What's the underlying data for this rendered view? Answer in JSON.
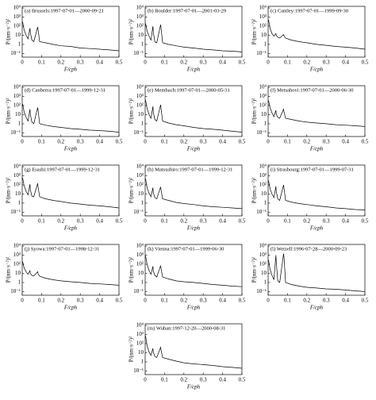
{
  "chart_data": [
    {
      "type": "line",
      "title": "(a) Brussels:1997-07-01—2000-09-21",
      "xlabel": "F/cph",
      "ylabel": "P/(nm·s⁻²)²",
      "log": true,
      "color": "#000000",
      "xlim": [
        0,
        0.5
      ],
      "xticks": [
        0,
        0.1,
        0.2,
        0.3,
        0.4,
        0.5
      ],
      "ylim": [
        0.04,
        15000
      ],
      "yticks": [
        {
          "value": 10000,
          "label": "10⁴"
        },
        {
          "value": 1000,
          "label": "10³"
        },
        {
          "value": 100,
          "label": "10²"
        },
        10,
        1,
        {
          "value": 0.1,
          "label": "10⁻¹"
        }
      ],
      "x": [
        0.002,
        0.01,
        0.02,
        0.03,
        0.04,
        0.042,
        0.05,
        0.06,
        0.08,
        0.083,
        0.09,
        0.12,
        0.16,
        0.2,
        0.25,
        0.3,
        0.35,
        0.4,
        0.45,
        0.5
      ],
      "values": [
        300,
        40,
        10,
        4,
        60,
        20,
        3,
        2,
        80,
        30,
        2,
        1.5,
        1,
        0.7,
        0.6,
        0.4,
        0.35,
        0.3,
        0.25,
        0.2
      ]
    },
    {
      "type": "line",
      "title": "(b) Boulder:1997-07-01—2001-03-29",
      "xlabel": "F/cph",
      "ylabel": "P/(nm·s⁻²)²",
      "log": true,
      "color": "#000000",
      "xlim": [
        0,
        0.5
      ],
      "xticks": [
        0,
        0.1,
        0.2,
        0.3,
        0.4,
        0.5
      ],
      "ylim": [
        0.04,
        15000
      ],
      "yticks": [
        {
          "value": 10000,
          "label": "10⁴"
        },
        {
          "value": 1000,
          "label": "10³"
        },
        {
          "value": 100,
          "label": "10²"
        },
        10,
        1,
        {
          "value": 0.1,
          "label": "10⁻¹"
        }
      ],
      "x": [
        0.002,
        0.01,
        0.02,
        0.03,
        0.04,
        0.042,
        0.05,
        0.06,
        0.08,
        0.083,
        0.09,
        0.12,
        0.16,
        0.2,
        0.25,
        0.3,
        0.35,
        0.4,
        0.45,
        0.5
      ],
      "values": [
        200,
        30,
        8,
        3,
        100,
        25,
        2,
        1.5,
        150,
        40,
        1.5,
        1,
        0.7,
        0.5,
        0.4,
        0.3,
        0.25,
        0.2,
        0.18,
        0.15
      ]
    },
    {
      "type": "line",
      "title": "(c) Cantley:1997-07-01—1999-09-30",
      "xlabel": "F/cph",
      "ylabel": "P/(nm·s⁻²)²",
      "log": true,
      "color": "#000000",
      "xlim": [
        0,
        0.5
      ],
      "xticks": [
        0,
        0.1,
        0.2,
        0.3,
        0.4,
        0.5
      ],
      "ylim": [
        0.04,
        15000
      ],
      "yticks": [
        {
          "value": 10000,
          "label": "10⁴"
        },
        {
          "value": 1000,
          "label": "10³"
        },
        {
          "value": 100,
          "label": "10²"
        },
        10,
        1,
        {
          "value": 0.1,
          "label": "10⁻¹"
        }
      ],
      "x": [
        0.002,
        0.01,
        0.02,
        0.03,
        0.04,
        0.042,
        0.05,
        0.06,
        0.08,
        0.083,
        0.09,
        0.12,
        0.16,
        0.2,
        0.25,
        0.3,
        0.35,
        0.4,
        0.45,
        0.5
      ],
      "values": [
        500,
        60,
        15,
        8,
        15,
        10,
        6,
        5,
        12,
        8,
        5,
        3,
        2,
        1.5,
        1,
        0.8,
        0.6,
        0.5,
        0.4,
        0.3
      ]
    },
    {
      "type": "line",
      "title": "(d) Canberra:1997-07-01—1999-12-31",
      "xlabel": "F/cph",
      "ylabel": "P/(nm·s⁻²)²",
      "log": true,
      "color": "#000000",
      "xlim": [
        0,
        0.5
      ],
      "xticks": [
        0,
        0.1,
        0.2,
        0.3,
        0.4,
        0.5
      ],
      "ylim": [
        0.04,
        15000
      ],
      "yticks": [
        {
          "value": 10000,
          "label": "10⁴"
        },
        {
          "value": 1000,
          "label": "10³"
        },
        {
          "value": 100,
          "label": "10²"
        },
        10,
        1,
        {
          "value": 0.1,
          "label": "10⁻¹"
        }
      ],
      "x": [
        0.002,
        0.01,
        0.02,
        0.03,
        0.04,
        0.042,
        0.05,
        0.06,
        0.08,
        0.083,
        0.09,
        0.12,
        0.16,
        0.2,
        0.25,
        0.3,
        0.35,
        0.4,
        0.45,
        0.5
      ],
      "values": [
        150,
        20,
        5,
        2,
        40,
        12,
        1.5,
        1,
        60,
        20,
        1,
        0.7,
        0.5,
        0.4,
        0.3,
        0.25,
        0.2,
        0.18,
        0.15,
        0.12
      ]
    },
    {
      "type": "line",
      "title": "(e) Membach:1997-07-01—2000-05-31",
      "xlabel": "F/cph",
      "ylabel": "P/(nm·s⁻²)²",
      "log": true,
      "color": "#000000",
      "xlim": [
        0,
        0.5
      ],
      "xticks": [
        0,
        0.1,
        0.2,
        0.3,
        0.4,
        0.5
      ],
      "ylim": [
        0.04,
        15000
      ],
      "yticks": [
        {
          "value": 10000,
          "label": "10⁴"
        },
        {
          "value": 1000,
          "label": "10³"
        },
        {
          "value": 100,
          "label": "10²"
        },
        10,
        1,
        {
          "value": 0.1,
          "label": "10⁻¹"
        }
      ],
      "x": [
        0.002,
        0.01,
        0.02,
        0.03,
        0.04,
        0.042,
        0.05,
        0.06,
        0.08,
        0.083,
        0.09,
        0.12,
        0.16,
        0.2,
        0.25,
        0.3,
        0.35,
        0.4,
        0.45,
        0.5
      ],
      "values": [
        400,
        50,
        10,
        4,
        80,
        20,
        3,
        2,
        120,
        30,
        2,
        1.2,
        0.8,
        0.6,
        0.4,
        0.3,
        0.25,
        0.2,
        0.15,
        0.12
      ]
    },
    {
      "type": "line",
      "title": "(f) Metsahovi:1997-07-01—2000-06-30",
      "xlabel": "F/cph",
      "ylabel": "P/(nm·s⁻²)²",
      "log": true,
      "color": "#000000",
      "xlim": [
        0,
        0.5
      ],
      "xticks": [
        0,
        0.1,
        0.2,
        0.3,
        0.4,
        0.5
      ],
      "ylim": [
        0.04,
        15000
      ],
      "yticks": [
        {
          "value": 10000,
          "label": "10⁴"
        },
        {
          "value": 1000,
          "label": "10³"
        },
        {
          "value": 100,
          "label": "10²"
        },
        10,
        1,
        {
          "value": 0.1,
          "label": "10⁻¹"
        }
      ],
      "x": [
        0.002,
        0.01,
        0.02,
        0.03,
        0.04,
        0.042,
        0.05,
        0.06,
        0.08,
        0.083,
        0.09,
        0.12,
        0.16,
        0.2,
        0.25,
        0.3,
        0.35,
        0.4,
        0.45,
        0.5
      ],
      "values": [
        350,
        60,
        15,
        6,
        30,
        12,
        5,
        4,
        40,
        15,
        4,
        3,
        2,
        1.5,
        1.2,
        1,
        0.8,
        0.7,
        0.6,
        0.5
      ]
    },
    {
      "type": "line",
      "title": "(g) Esashi:1997-07-01—1999-12-31",
      "xlabel": "F/cph",
      "ylabel": "P/(nm·s⁻²)²",
      "log": true,
      "color": "#000000",
      "xlim": [
        0,
        0.5
      ],
      "xticks": [
        0,
        0.1,
        0.2,
        0.3,
        0.4,
        0.5
      ],
      "ylim": [
        0.04,
        15000
      ],
      "yticks": [
        {
          "value": 10000,
          "label": "10⁴"
        },
        {
          "value": 1000,
          "label": "10³"
        },
        {
          "value": 100,
          "label": "10²"
        },
        10,
        1,
        {
          "value": 0.1,
          "label": "10⁻¹"
        }
      ],
      "x": [
        0.002,
        0.01,
        0.02,
        0.03,
        0.04,
        0.042,
        0.05,
        0.06,
        0.08,
        0.083,
        0.09,
        0.12,
        0.16,
        0.2,
        0.25,
        0.3,
        0.35,
        0.4,
        0.45,
        0.5
      ],
      "values": [
        600,
        80,
        20,
        8,
        120,
        30,
        6,
        5,
        150,
        40,
        5,
        3,
        2,
        1.5,
        1,
        0.8,
        0.6,
        0.5,
        0.4,
        0.3
      ]
    },
    {
      "type": "line",
      "title": "(h) Matsushiro:1997-07-01—1999-12-31",
      "xlabel": "F/cph",
      "ylabel": "P/(nm·s⁻²)²",
      "log": true,
      "color": "#000000",
      "xlim": [
        0,
        0.5
      ],
      "xticks": [
        0,
        0.1,
        0.2,
        0.3,
        0.4,
        0.5
      ],
      "ylim": [
        0.04,
        15000
      ],
      "yticks": [
        {
          "value": 10000,
          "label": "10⁴"
        },
        {
          "value": 1000,
          "label": "10³"
        },
        {
          "value": 100,
          "label": "10²"
        },
        10,
        1,
        {
          "value": 0.1,
          "label": "10⁻¹"
        }
      ],
      "x": [
        0.002,
        0.01,
        0.02,
        0.03,
        0.04,
        0.042,
        0.05,
        0.06,
        0.08,
        0.083,
        0.09,
        0.12,
        0.16,
        0.2,
        0.25,
        0.3,
        0.35,
        0.4,
        0.45,
        0.5
      ],
      "values": [
        500,
        50,
        12,
        5,
        50,
        15,
        4,
        3,
        60,
        20,
        3,
        2,
        1.2,
        0.9,
        0.7,
        0.5,
        0.4,
        0.35,
        0.3,
        0.25
      ]
    },
    {
      "type": "line",
      "title": "(i) Strasbourg:1997-07-01—1999-07-31",
      "xlabel": "F/cph",
      "ylabel": "P/(nm·s⁻²)²",
      "log": true,
      "color": "#000000",
      "xlim": [
        0,
        0.5
      ],
      "xticks": [
        0,
        0.1,
        0.2,
        0.3,
        0.4,
        0.5
      ],
      "ylim": [
        0.04,
        15000
      ],
      "yticks": [
        {
          "value": 10000,
          "label": "10⁴"
        },
        {
          "value": 1000,
          "label": "10³"
        },
        {
          "value": 100,
          "label": "10²"
        },
        10,
        1,
        {
          "value": 0.1,
          "label": "10⁻¹"
        }
      ],
      "x": [
        0.002,
        0.01,
        0.02,
        0.03,
        0.04,
        0.042,
        0.05,
        0.06,
        0.08,
        0.083,
        0.09,
        0.12,
        0.16,
        0.2,
        0.25,
        0.3,
        0.35,
        0.4,
        0.45,
        0.5
      ],
      "values": [
        300,
        40,
        10,
        4,
        70,
        20,
        3,
        2,
        100,
        30,
        2,
        1.3,
        0.9,
        0.7,
        0.5,
        0.4,
        0.3,
        0.25,
        0.2,
        0.18
      ]
    },
    {
      "type": "line",
      "title": "(j) Syowa:1997-07-01—1998-12-31",
      "xlabel": "F/cph",
      "ylabel": "P/(nm·s⁻²)²",
      "log": true,
      "color": "#000000",
      "xlim": [
        0,
        0.5
      ],
      "xticks": [
        0,
        0.1,
        0.2,
        0.3,
        0.4,
        0.5
      ],
      "ylim": [
        0.04,
        15000
      ],
      "yticks": [
        {
          "value": 10000,
          "label": "10⁴"
        },
        {
          "value": 1000,
          "label": "10³"
        },
        {
          "value": 100,
          "label": "10²"
        },
        10,
        1,
        {
          "value": 0.1,
          "label": "10⁻¹"
        }
      ],
      "x": [
        0.002,
        0.01,
        0.02,
        0.03,
        0.04,
        0.042,
        0.05,
        0.06,
        0.08,
        0.083,
        0.09,
        0.12,
        0.16,
        0.2,
        0.25,
        0.3,
        0.35,
        0.4,
        0.45,
        0.5
      ],
      "values": [
        200,
        40,
        15,
        8,
        20,
        10,
        6,
        5,
        15,
        8,
        5,
        3,
        2,
        1.5,
        1.2,
        1,
        0.8,
        0.7,
        0.6,
        0.5
      ]
    },
    {
      "type": "line",
      "title": "(k) Vienna:1997-07-01—1999-06-30",
      "xlabel": "F/cph",
      "ylabel": "P/(nm·s⁻²)²",
      "log": true,
      "color": "#000000",
      "xlim": [
        0,
        0.5
      ],
      "xticks": [
        0,
        0.1,
        0.2,
        0.3,
        0.4,
        0.5
      ],
      "ylim": [
        0.04,
        15000
      ],
      "yticks": [
        {
          "value": 10000,
          "label": "10⁴"
        },
        {
          "value": 1000,
          "label": "10³"
        },
        {
          "value": 100,
          "label": "10²"
        },
        10,
        1,
        {
          "value": 0.1,
          "label": "10⁻¹"
        }
      ],
      "x": [
        0.002,
        0.01,
        0.02,
        0.03,
        0.04,
        0.042,
        0.05,
        0.06,
        0.08,
        0.083,
        0.09,
        0.12,
        0.16,
        0.2,
        0.25,
        0.3,
        0.35,
        0.4,
        0.45,
        0.5
      ],
      "values": [
        800,
        100,
        20,
        8,
        60,
        20,
        6,
        4,
        70,
        25,
        4,
        2.5,
        1.5,
        1.2,
        1,
        0.8,
        0.6,
        0.5,
        0.4,
        0.35
      ]
    },
    {
      "type": "line",
      "title": "(l) Wetzell:1996-07-28—2000-09-23",
      "xlabel": "F/cph",
      "ylabel": "P/(nm·s⁻²)²",
      "log": true,
      "color": "#000000",
      "xlim": [
        0,
        0.5
      ],
      "xticks": [
        0,
        0.1,
        0.2,
        0.3,
        0.4,
        0.5
      ],
      "ylim": [
        0.04,
        15000
      ],
      "yticks": [
        {
          "value": 10000,
          "label": "10⁴"
        },
        {
          "value": 1000,
          "label": "10³"
        },
        {
          "value": 100,
          "label": "10²"
        },
        10,
        1,
        {
          "value": 0.1,
          "label": "10⁻¹"
        }
      ],
      "x": [
        0.002,
        0.01,
        0.02,
        0.03,
        0.04,
        0.042,
        0.05,
        0.06,
        0.08,
        0.083,
        0.09,
        0.12,
        0.16,
        0.2,
        0.25,
        0.3,
        0.35,
        0.4,
        0.45,
        0.5
      ],
      "values": [
        300,
        30,
        6,
        2,
        1000,
        200,
        1.5,
        1,
        1500,
        300,
        1,
        0.6,
        0.4,
        0.3,
        0.25,
        0.2,
        0.18,
        0.15,
        0.12,
        0.1
      ]
    },
    {
      "type": "line",
      "title": "(m) Wuhan:1997-12-20—2000-08-31",
      "xlabel": "F/cph",
      "ylabel": "P/(nm·s⁻²)²",
      "log": true,
      "color": "#000000",
      "xlim": [
        0,
        0.5
      ],
      "xticks": [
        0,
        0.1,
        0.2,
        0.3,
        0.4,
        0.5
      ],
      "ylim": [
        0.04,
        15000
      ],
      "yticks": [
        {
          "value": 10000,
          "label": "10⁴"
        },
        {
          "value": 1000,
          "label": "10³"
        },
        {
          "value": 100,
          "label": "10²"
        },
        10,
        1,
        {
          "value": 0.1,
          "label": "10⁻¹"
        }
      ],
      "x": [
        0.002,
        0.01,
        0.02,
        0.03,
        0.04,
        0.042,
        0.05,
        0.06,
        0.08,
        0.083,
        0.09,
        0.12,
        0.16,
        0.2,
        0.25,
        0.3,
        0.35,
        0.4,
        0.45,
        0.5
      ],
      "values": [
        700,
        60,
        12,
        5,
        30,
        12,
        4,
        3,
        40,
        15,
        3,
        2,
        1.2,
        0.8,
        0.6,
        0.5,
        0.4,
        0.3,
        0.25,
        0.2
      ]
    }
  ]
}
